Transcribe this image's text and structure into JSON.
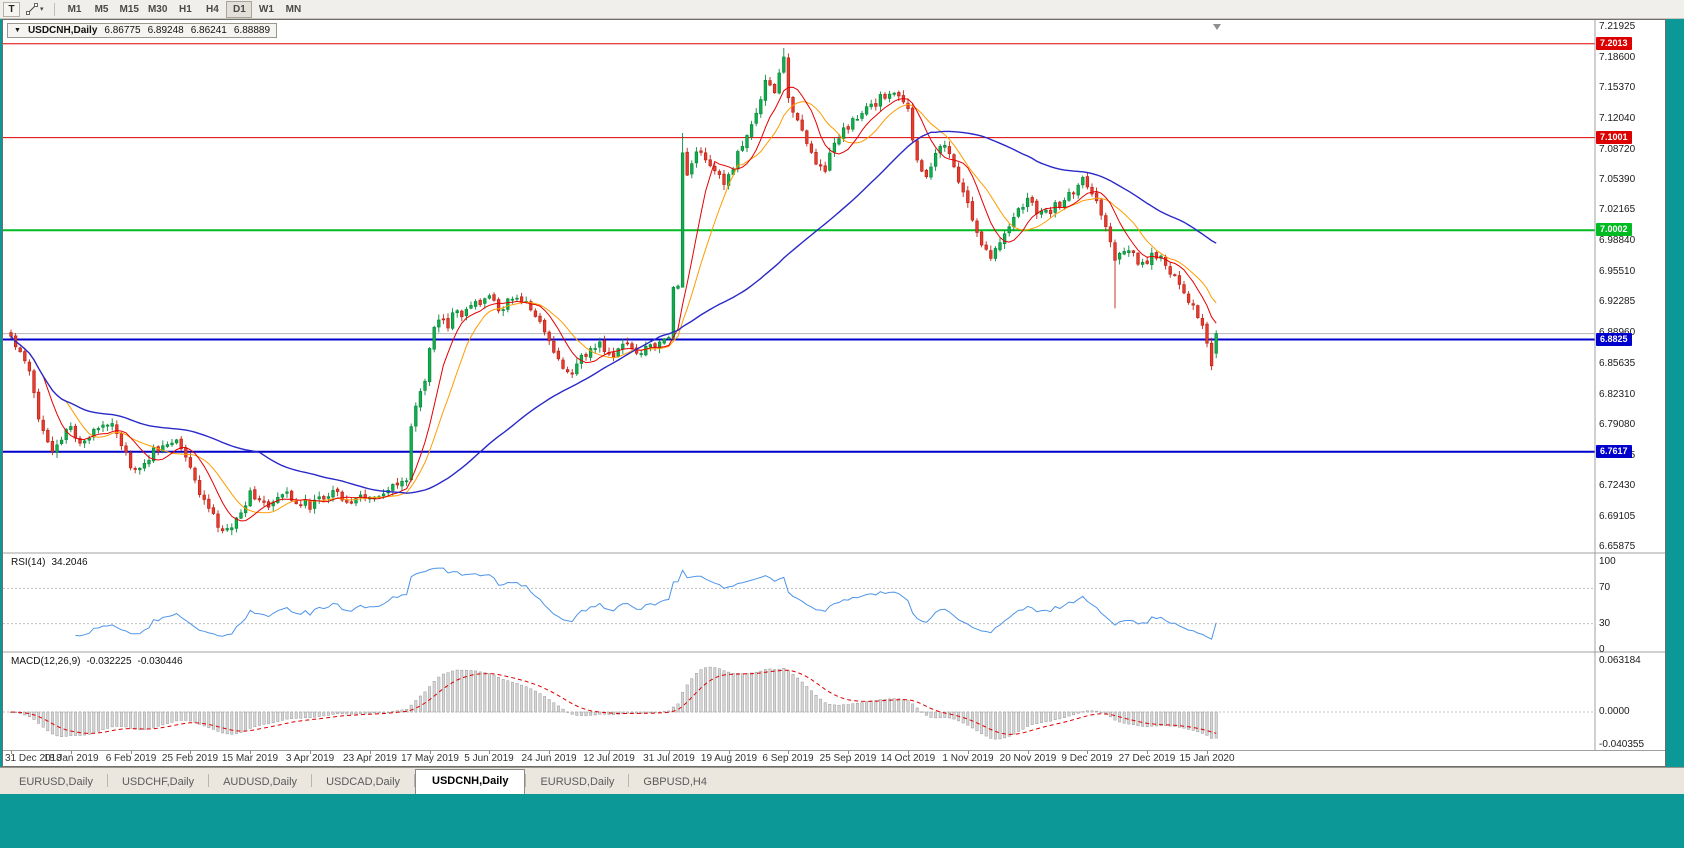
{
  "toolbar": {
    "text_tool_label": "T",
    "timeframes": [
      {
        "label": "M1"
      },
      {
        "label": "M5"
      },
      {
        "label": "M15"
      },
      {
        "label": "M30"
      },
      {
        "label": "H1"
      },
      {
        "label": "H4"
      },
      {
        "label": "D1",
        "active": true
      },
      {
        "label": "W1"
      },
      {
        "label": "MN"
      }
    ]
  },
  "chart": {
    "symbol_title": "USDCNH,Daily",
    "open": "6.86775",
    "high": "6.89248",
    "low": "6.86241",
    "close": "6.88889"
  },
  "price_axis": [
    "7.21925",
    "7.18600",
    "7.15370",
    "7.12040",
    "7.08720",
    "7.05390",
    "7.02165",
    "6.98840",
    "6.95510",
    "6.92285",
    "6.88960",
    "6.85635",
    "6.82310",
    "6.79080",
    "6.75755",
    "6.72430",
    "6.69105",
    "6.65875"
  ],
  "levels": [
    {
      "label": "7.2013",
      "price": 7.2013,
      "color": "#dd0000",
      "thickness": 1
    },
    {
      "label": "7.1001",
      "price": 7.1001,
      "color": "#dd0000",
      "thickness": 1
    },
    {
      "label": "7.0002",
      "price": 7.0002,
      "color": "#00bb22",
      "thickness": 2
    },
    {
      "label": "6.8825",
      "price": 6.8825,
      "color": "#0000cc",
      "thickness": 2
    },
    {
      "label": "6.7617",
      "price": 6.7617,
      "color": "#0000cc",
      "thickness": 2
    }
  ],
  "bid_line": {
    "price": 6.88889,
    "color": "#b5b5b5"
  },
  "indicators": {
    "rsi": {
      "name": "RSI(14)",
      "value": "34.2046",
      "scale": [
        "100",
        "70",
        "30",
        "0"
      ]
    },
    "macd": {
      "name": "MACD(12,26,9)",
      "value_main": "-0.032225",
      "value_signal": "-0.030446",
      "scale": [
        "0.063184",
        "0.0000",
        "-0.040355"
      ]
    }
  },
  "date_axis": [
    "31 Dec 2018",
    "18 Jan 2019",
    "6 Feb 2019",
    "25 Feb 2019",
    "15 Mar 2019",
    "3 Apr 2019",
    "23 Apr 2019",
    "17 May 2019",
    "5 Jun 2019",
    "24 Jun 2019",
    "12 Jul 2019",
    "31 Jul 2019",
    "19 Aug 2019",
    "6 Sep 2019",
    "25 Sep 2019",
    "14 Oct 2019",
    "1 Nov 2019",
    "20 Nov 2019",
    "9 Dec 2019",
    "27 Dec 2019",
    "15 Jan 2020"
  ],
  "tabs": [
    {
      "label": "EURUSD,Daily"
    },
    {
      "label": "USDCHF,Daily"
    },
    {
      "label": "AUDUSD,Daily"
    },
    {
      "label": "USDCAD,Daily"
    },
    {
      "label": "USDCNH,Daily",
      "active": true
    },
    {
      "label": "EURUSD,Daily"
    },
    {
      "label": "GBPUSD,H4"
    }
  ],
  "chart_data": {
    "type": "candlestick",
    "symbol": "USDCNH",
    "timeframe": "Daily",
    "current_ohlc": {
      "open": 6.86775,
      "high": 6.89248,
      "low": 6.86241,
      "close": 6.88889
    },
    "bars": 263,
    "price_scale": {
      "top": 7.21925,
      "bottom": 6.65875
    },
    "horizontal_levels": [
      7.2013,
      7.1001,
      7.0002,
      6.8825,
      6.7617
    ],
    "anchors": [
      [
        0,
        6.885
      ],
      [
        2,
        6.87
      ],
      [
        4,
        6.852
      ],
      [
        6,
        6.8
      ],
      [
        9,
        6.762
      ],
      [
        11,
        6.775
      ],
      [
        13,
        6.788
      ],
      [
        15,
        6.772
      ],
      [
        17,
        6.776
      ],
      [
        19,
        6.788
      ],
      [
        22,
        6.796
      ],
      [
        24,
        6.77
      ],
      [
        26,
        6.746
      ],
      [
        28,
        6.74
      ],
      [
        31,
        6.763
      ],
      [
        34,
        6.768
      ],
      [
        36,
        6.776
      ],
      [
        38,
        6.755
      ],
      [
        40,
        6.729
      ],
      [
        43,
        6.7
      ],
      [
        46,
        6.673
      ],
      [
        48,
        6.682
      ],
      [
        50,
        6.695
      ],
      [
        52,
        6.718
      ],
      [
        54,
        6.712
      ],
      [
        56,
        6.7
      ],
      [
        58,
        6.71
      ],
      [
        60,
        6.716
      ],
      [
        62,
        6.708
      ],
      [
        65,
        6.704
      ],
      [
        68,
        6.712
      ],
      [
        70,
        6.721
      ],
      [
        72,
        6.714
      ],
      [
        74,
        6.707
      ],
      [
        76,
        6.712
      ],
      [
        78,
        6.716
      ],
      [
        80,
        6.71
      ],
      [
        82,
        6.719
      ],
      [
        84,
        6.726
      ],
      [
        86,
        6.733
      ],
      [
        87,
        6.788
      ],
      [
        88,
        6.808
      ],
      [
        89,
        6.824
      ],
      [
        90,
        6.84
      ],
      [
        91,
        6.872
      ],
      [
        92,
        6.892
      ],
      [
        93,
        6.904
      ],
      [
        95,
        6.898
      ],
      [
        96,
        6.912
      ],
      [
        98,
        6.908
      ],
      [
        100,
        6.922
      ],
      [
        102,
        6.918
      ],
      [
        104,
        6.931
      ],
      [
        106,
        6.914
      ],
      [
        108,
        6.922
      ],
      [
        110,
        6.928
      ],
      [
        112,
        6.921
      ],
      [
        114,
        6.908
      ],
      [
        116,
        6.89
      ],
      [
        118,
        6.868
      ],
      [
        120,
        6.852
      ],
      [
        122,
        6.846
      ],
      [
        124,
        6.862
      ],
      [
        126,
        6.872
      ],
      [
        128,
        6.879
      ],
      [
        130,
        6.863
      ],
      [
        132,
        6.871
      ],
      [
        134,
        6.879
      ],
      [
        136,
        6.868
      ],
      [
        138,
        6.873
      ],
      [
        140,
        6.878
      ],
      [
        142,
        6.881
      ],
      [
        143,
        6.886
      ],
      [
        144,
        6.938
      ],
      [
        145,
        6.944
      ],
      [
        146,
        7.088
      ],
      [
        147,
        7.058
      ],
      [
        148,
        7.07
      ],
      [
        149,
        7.088
      ],
      [
        151,
        7.078
      ],
      [
        153,
        7.066
      ],
      [
        155,
        7.048
      ],
      [
        156,
        7.057
      ],
      [
        158,
        7.082
      ],
      [
        160,
        7.098
      ],
      [
        162,
        7.128
      ],
      [
        164,
        7.158
      ],
      [
        166,
        7.152
      ],
      [
        168,
        7.183
      ],
      [
        169,
        7.142
      ],
      [
        171,
        7.118
      ],
      [
        173,
        7.096
      ],
      [
        175,
        7.072
      ],
      [
        177,
        7.068
      ],
      [
        179,
        7.092
      ],
      [
        181,
        7.108
      ],
      [
        183,
        7.118
      ],
      [
        185,
        7.126
      ],
      [
        187,
        7.132
      ],
      [
        189,
        7.142
      ],
      [
        191,
        7.148
      ],
      [
        193,
        7.146
      ],
      [
        195,
        7.128
      ],
      [
        197,
        7.072
      ],
      [
        199,
        7.062
      ],
      [
        201,
        7.082
      ],
      [
        203,
        7.092
      ],
      [
        205,
        7.068
      ],
      [
        207,
        7.042
      ],
      [
        209,
        7.012
      ],
      [
        211,
        6.988
      ],
      [
        213,
        6.972
      ],
      [
        215,
        6.986
      ],
      [
        217,
        7.008
      ],
      [
        219,
        7.022
      ],
      [
        221,
        7.034
      ],
      [
        223,
        7.022
      ],
      [
        225,
        7.018
      ],
      [
        227,
        7.026
      ],
      [
        229,
        7.032
      ],
      [
        231,
        7.042
      ],
      [
        233,
        7.058
      ],
      [
        235,
        7.042
      ],
      [
        237,
        7.018
      ],
      [
        239,
        6.992
      ],
      [
        240,
        6.968
      ],
      [
        242,
        6.978
      ],
      [
        244,
        6.972
      ],
      [
        246,
        6.963
      ],
      [
        248,
        6.972
      ],
      [
        250,
        6.968
      ],
      [
        252,
        6.956
      ],
      [
        254,
        6.94
      ],
      [
        256,
        6.924
      ],
      [
        258,
        6.908
      ],
      [
        259,
        6.895
      ],
      [
        260,
        6.876
      ],
      [
        261,
        6.853
      ],
      [
        262,
        6.88889
      ]
    ],
    "special": {
      "146": {
        "l": 6.945,
        "h": 7.105
      },
      "168": {
        "h": 7.1965
      },
      "240": {
        "l": 6.916
      },
      "262": {
        "o": 6.86775,
        "h": 6.89248,
        "l": 6.86241,
        "c": 6.88889
      }
    },
    "colors": {
      "bull_fill": "#12ae4e",
      "bull_stroke": "#078a3a",
      "bear_fill": "#e73c30",
      "bear_stroke": "#bf2418",
      "rsi_line": "#4f95e8",
      "macd_hist_fill": "#d6d6d6",
      "macd_hist_stroke": "#999999",
      "macd_signal": "#dd0000"
    },
    "moving_averages": [
      {
        "period": 13,
        "color": "#ff9c00",
        "name": "MA-orange"
      },
      {
        "period": 8,
        "color": "#e60000",
        "name": "MA-red"
      },
      {
        "period": 55,
        "color": "#2929c8",
        "name": "MA-blue"
      }
    ],
    "indicators": {
      "rsi": {
        "period": 14,
        "current": 34.2046
      },
      "macd": {
        "fast": 12,
        "slow": 26,
        "signal": 9,
        "current_main": -0.032225,
        "current_signal": -0.030446
      }
    }
  }
}
